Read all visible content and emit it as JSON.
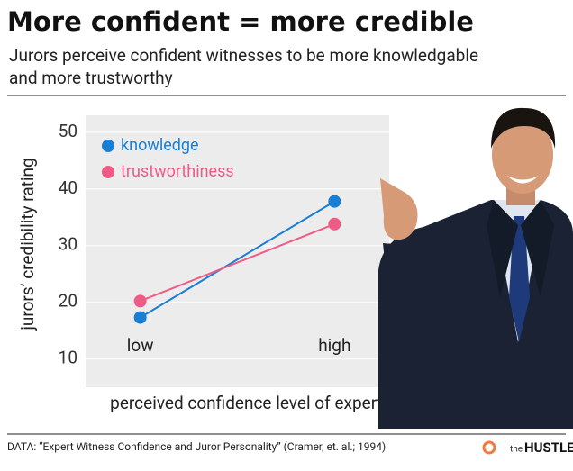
{
  "chart_data": {
    "type": "line",
    "title": "More confident = more credible",
    "subtitle": "Jurors perceive confident witnesses to be more knowledgable",
    "subtitle_line2": "and more trustworthy",
    "categories": [
      "low",
      "high"
    ],
    "series": [
      {
        "name": "knowledge",
        "color": "#1a7fd4",
        "values": [
          17.3,
          37.8
        ]
      },
      {
        "name": "trustworthiness",
        "color": "#ef5b85",
        "values": [
          20.2,
          33.8
        ]
      }
    ],
    "xlabel": "perceived confidence level of expert",
    "ylabel": "jurors’ credibility rating",
    "ylim": [
      5,
      53
    ],
    "yticks": [
      10,
      20,
      30,
      40,
      50
    ],
    "grid": true,
    "legend": "top-left",
    "source": "DATA: “Expert Witness Confidence and Juror Personality” (Cramer, et. al.; 1994)",
    "brand_prefix": "the",
    "brand": "HUSTLE"
  }
}
